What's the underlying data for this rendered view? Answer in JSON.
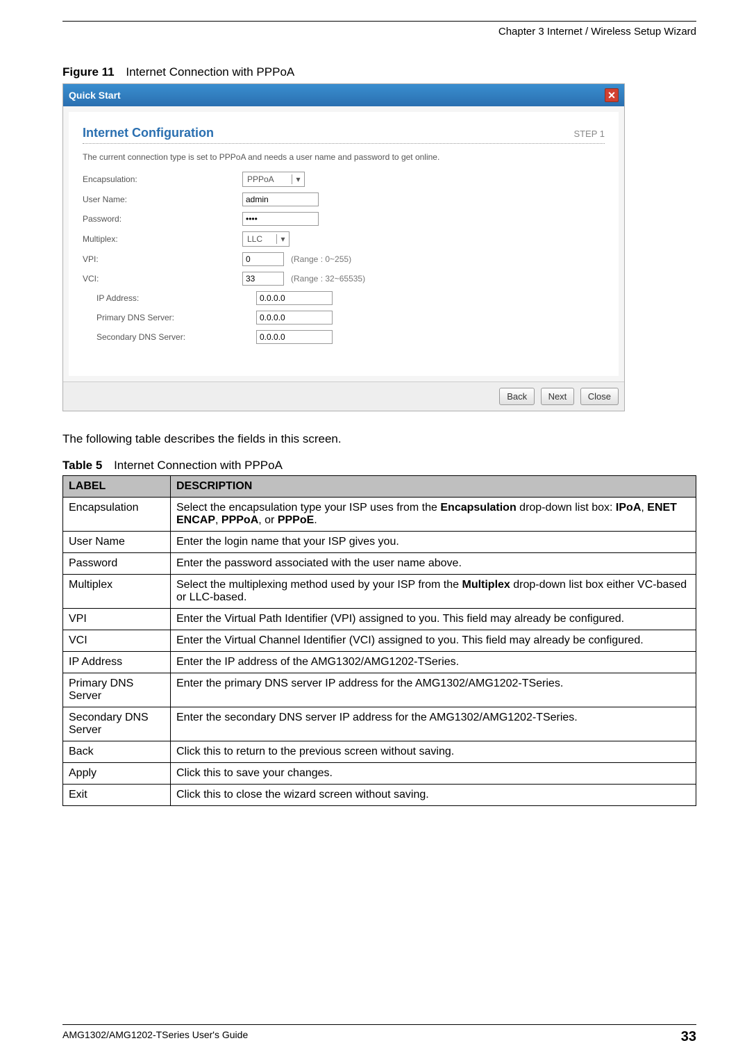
{
  "header": {
    "chapter_line": "Chapter 3 Internet / Wireless Setup Wizard"
  },
  "figure": {
    "label": "Figure 11",
    "title": "Internet Connection with PPPoA"
  },
  "screenshot": {
    "titlebar": "Quick Start",
    "panel_title": "Internet Configuration",
    "step": "STEP 1",
    "description": "The current connection type is set to PPPoA and needs a user name and password to get online.",
    "fields": {
      "encapsulation": {
        "label": "Encapsulation:",
        "value": "PPPoA"
      },
      "username": {
        "label": "User Name:",
        "value": "admin"
      },
      "password": {
        "label": "Password:",
        "value": "••••"
      },
      "multiplex": {
        "label": "Multiplex:",
        "value": "LLC"
      },
      "vpi": {
        "label": "VPI:",
        "value": "0",
        "hint": "(Range : 0~255)"
      },
      "vci": {
        "label": "VCI:",
        "value": "33",
        "hint": "(Range : 32~65535)"
      },
      "ip": {
        "label": "IP Address:",
        "value": "0.0.0.0"
      },
      "dns1": {
        "label": "Primary DNS Server:",
        "value": "0.0.0.0"
      },
      "dns2": {
        "label": "Secondary DNS Server:",
        "value": "0.0.0.0"
      }
    },
    "buttons": {
      "back": "Back",
      "next": "Next",
      "close": "Close"
    }
  },
  "intro_line": "The following table describes the fields in this screen.",
  "table_caption": {
    "label": "Table 5",
    "title": "Internet Connection with PPPoA"
  },
  "table": {
    "head": {
      "c1": "LABEL",
      "c2": "DESCRIPTION"
    },
    "rows": {
      "r0": {
        "c1": "Encapsulation",
        "pre": "Select the encapsulation type your ISP uses from the ",
        "b1": "Encapsulation",
        "mid": " drop-down list box: ",
        "b2": "IPoA",
        "s2": ", ",
        "b3": "ENET ENCAP",
        "s3": ", ",
        "b4": "PPPoA",
        "s4": ", or ",
        "b5": "PPPoE",
        "post": "."
      },
      "r1": {
        "c1": "User Name",
        "c2": "Enter the login name that your ISP gives you."
      },
      "r2": {
        "c1": "Password",
        "c2": "Enter the password associated with the user name above."
      },
      "r3": {
        "c1": "Multiplex",
        "pre": "Select the multiplexing method used by your ISP from the ",
        "b1": "Multiplex",
        "post": " drop-down list box either VC-based or LLC-based."
      },
      "r4": {
        "c1": "VPI",
        "c2": "Enter the Virtual Path Identifier (VPI) assigned to you. This field may already be configured."
      },
      "r5": {
        "c1": "VCI",
        "c2": "Enter the Virtual Channel Identifier (VCI) assigned to you. This field may already be configured."
      },
      "r6": {
        "c1": "IP Address",
        "c2": "Enter the IP address of the AMG1302/AMG1202-TSeries."
      },
      "r7": {
        "c1": "Primary DNS Server",
        "c2": "Enter the primary DNS server IP address for the AMG1302/AMG1202-TSeries."
      },
      "r8": {
        "c1": "Secondary DNS Server",
        "c2": "Enter the secondary DNS server IP address for the AMG1302/AMG1202-TSeries."
      },
      "r9": {
        "c1": "Back",
        "c2": "Click this to return to the previous screen without saving."
      },
      "r10": {
        "c1": "Apply",
        "c2": "Click this to save your changes."
      },
      "r11": {
        "c1": "Exit",
        "c2": "Click this to close the wizard screen without saving."
      }
    }
  },
  "footer": {
    "guide": "AMG1302/AMG1202-TSeries User's Guide",
    "page": "33"
  }
}
